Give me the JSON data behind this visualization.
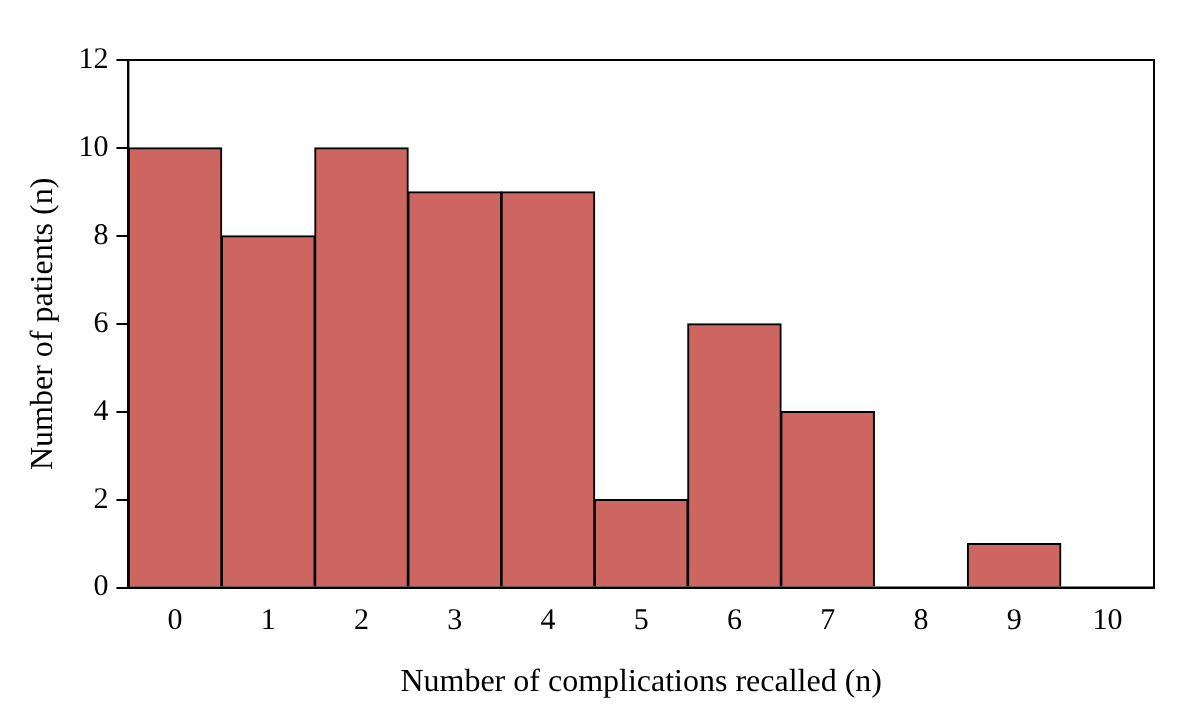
{
  "chart_data": {
    "type": "bar",
    "xlabel": "Number of complications recalled (n)",
    "ylabel": "Number of patients (n)",
    "categories": [
      "0",
      "1",
      "2",
      "3",
      "4",
      "5",
      "6",
      "7",
      "8",
      "9",
      "10"
    ],
    "values": [
      10,
      8,
      10,
      9,
      9,
      2,
      6,
      4,
      0,
      1,
      0
    ],
    "color": "#cd6661",
    "ylim": [
      0,
      12
    ],
    "yticks": [
      0,
      2,
      4,
      6,
      8,
      10,
      12
    ],
    "grid": false,
    "legend": false
  }
}
